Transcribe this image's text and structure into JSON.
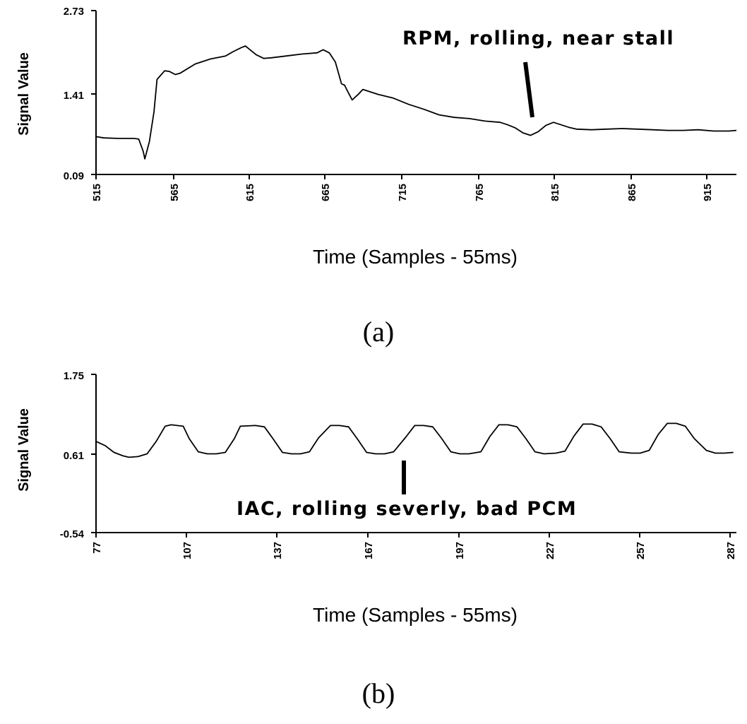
{
  "chart_data": [
    {
      "type": "line",
      "caption": "(a)",
      "ylabel": "Signal Value",
      "xlabel": "Time (Samples - 55ms)",
      "yticks": [
        "2.73",
        "1.41",
        "0.09"
      ],
      "ytick_values": [
        2.73,
        1.41,
        0.09
      ],
      "ylim": [
        0.09,
        2.73
      ],
      "xlim": [
        515,
        935
      ],
      "xticks": [
        "515",
        "565",
        "615",
        "665",
        "715",
        "765",
        "815",
        "865",
        "915"
      ],
      "xtick_values": [
        515,
        565,
        615,
        665,
        715,
        765,
        815,
        865,
        915
      ],
      "annotation": "RPM, rolling, near stall",
      "annotation_target": {
        "x": 807,
        "y": 0.93
      },
      "series": [
        {
          "color": "#000000",
          "x": [
            515,
            520,
            530,
            540,
            543,
            546,
            547,
            550,
            553,
            555,
            560,
            563,
            567,
            570,
            580,
            590,
            600,
            605,
            610,
            613,
            616,
            620,
            625,
            630,
            640,
            650,
            660,
            664,
            668,
            672,
            676,
            678,
            680,
            683,
            687,
            690,
            700,
            710,
            720,
            730,
            740,
            750,
            760,
            770,
            780,
            785,
            790,
            795,
            800,
            805,
            810,
            815,
            820,
            825,
            830,
            840,
            850,
            860,
            870,
            880,
            890,
            900,
            910,
            920,
            930,
            935
          ],
          "y": [
            0.7,
            0.68,
            0.67,
            0.67,
            0.66,
            0.46,
            0.34,
            0.62,
            1.1,
            1.62,
            1.76,
            1.75,
            1.7,
            1.72,
            1.87,
            1.95,
            2.0,
            2.07,
            2.13,
            2.16,
            2.1,
            2.02,
            1.96,
            1.97,
            2.0,
            2.03,
            2.05,
            2.1,
            2.05,
            1.9,
            1.55,
            1.53,
            1.43,
            1.29,
            1.38,
            1.46,
            1.38,
            1.32,
            1.22,
            1.14,
            1.05,
            1.01,
            0.99,
            0.95,
            0.93,
            0.89,
            0.84,
            0.76,
            0.72,
            0.78,
            0.88,
            0.93,
            0.89,
            0.85,
            0.82,
            0.81,
            0.82,
            0.83,
            0.82,
            0.81,
            0.8,
            0.8,
            0.81,
            0.79,
            0.79,
            0.8
          ]
        }
      ]
    },
    {
      "type": "line",
      "caption": "(b)",
      "ylabel": "Signal Value",
      "xlabel": "Time (Samples - 55ms)",
      "yticks": [
        "1.75",
        "0.61",
        "-0.54"
      ],
      "ytick_values": [
        1.75,
        0.61,
        -0.54
      ],
      "ylim": [
        -0.54,
        1.75
      ],
      "xlim": [
        77,
        290
      ],
      "xticks": [
        "77",
        "107",
        "137",
        "167",
        "197",
        "227",
        "257",
        "287"
      ],
      "xtick_values": [
        77,
        107,
        137,
        167,
        197,
        227,
        257,
        287
      ],
      "annotation": "IAC, rolling severly, bad PCM",
      "annotation_target": {
        "x": 185,
        "y": 0.48
      },
      "series": [
        {
          "color": "#000000",
          "x": [
            77,
            80,
            83,
            86,
            88,
            91,
            94,
            97,
            100,
            102,
            106,
            108,
            111,
            114,
            117,
            120,
            123,
            125,
            130,
            133,
            136,
            139,
            142,
            145,
            148,
            151,
            155,
            158,
            161,
            164,
            167,
            170,
            173,
            176,
            180,
            183,
            186,
            189,
            192,
            195,
            198,
            201,
            205,
            208,
            211,
            214,
            217,
            220,
            223,
            226,
            230,
            233,
            236,
            239,
            242,
            245,
            248,
            251,
            255,
            258,
            261,
            264,
            267,
            270,
            273,
            276,
            280,
            283,
            286,
            289
          ],
          "y": [
            0.78,
            0.72,
            0.62,
            0.57,
            0.55,
            0.56,
            0.6,
            0.78,
            1.0,
            1.02,
            1.0,
            0.82,
            0.63,
            0.6,
            0.6,
            0.62,
            0.82,
            1.0,
            1.01,
            0.99,
            0.81,
            0.62,
            0.6,
            0.6,
            0.63,
            0.83,
            1.01,
            1.01,
            0.99,
            0.81,
            0.62,
            0.6,
            0.6,
            0.63,
            0.84,
            1.01,
            1.01,
            0.99,
            0.82,
            0.63,
            0.6,
            0.6,
            0.63,
            0.85,
            1.02,
            1.02,
            0.99,
            0.82,
            0.63,
            0.6,
            0.61,
            0.64,
            0.86,
            1.03,
            1.03,
            0.99,
            0.82,
            0.63,
            0.61,
            0.61,
            0.65,
            0.88,
            1.04,
            1.04,
            1.0,
            0.82,
            0.65,
            0.61,
            0.61,
            0.62
          ]
        }
      ]
    }
  ]
}
